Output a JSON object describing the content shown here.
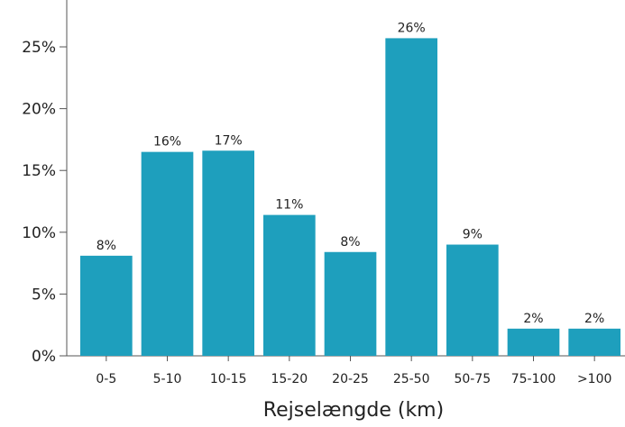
{
  "chart_data": {
    "type": "bar",
    "title": "",
    "xlabel": "Rejselængde (km)",
    "ylabel": "",
    "categories": [
      "0-5",
      "5-10",
      "10-15",
      "15-20",
      "20-25",
      "25-50",
      "50-75",
      "75-100",
      ">100"
    ],
    "values": [
      8.1,
      16.5,
      16.6,
      11.4,
      8.4,
      25.7,
      9.0,
      2.2,
      2.2
    ],
    "data_labels": [
      "8%",
      "16%",
      "17%",
      "11%",
      "8%",
      "26%",
      "9%",
      "2%",
      "2%"
    ],
    "y_ticks": [
      0,
      5,
      10,
      15,
      20,
      25
    ],
    "y_tick_labels": [
      "0%",
      "5%",
      "10%",
      "15%",
      "20%",
      "25%"
    ],
    "ylim": [
      0,
      28.5
    ],
    "grid": false,
    "bar_color": "#1e9fbd"
  }
}
